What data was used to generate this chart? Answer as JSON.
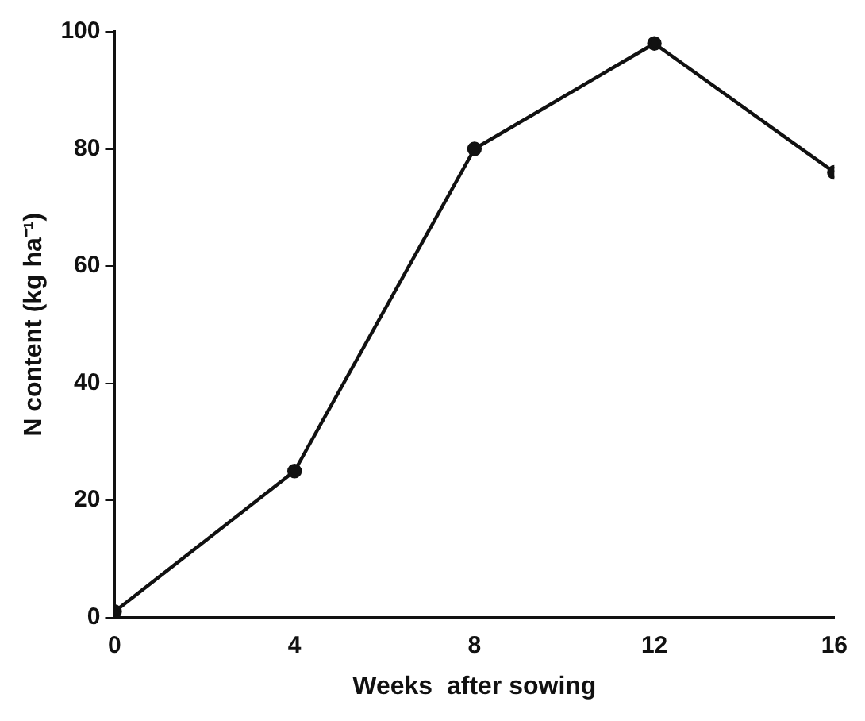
{
  "chart_data": {
    "type": "line",
    "xlabel": "Weeks  after sowing",
    "ylabel": "N content (kg ha⁻¹)",
    "x": [
      0,
      4,
      8,
      12,
      16
    ],
    "series": [
      {
        "color": "#111111",
        "values": [
          1,
          25,
          80,
          98,
          76
        ]
      }
    ],
    "xlim": [
      0,
      16
    ],
    "ylim": [
      0,
      100
    ],
    "xticks": [
      0,
      4,
      8,
      12,
      16
    ],
    "yticks": [
      0,
      20,
      40,
      60,
      80,
      100
    ],
    "grid": false,
    "legend": false,
    "marker": "circle",
    "line_style": "solid"
  }
}
